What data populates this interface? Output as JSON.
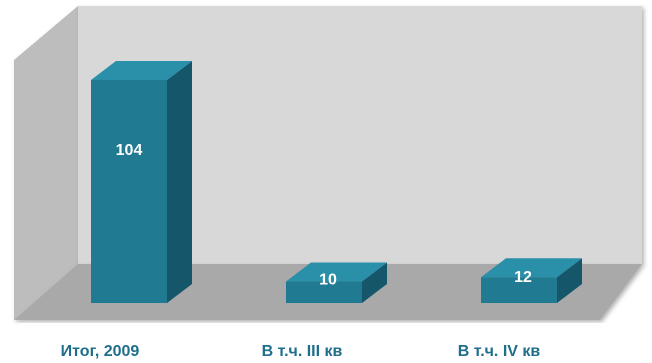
{
  "chart_data": {
    "type": "bar",
    "categories": [
      "Итог, 2009",
      "В т.ч. III кв",
      "В т.ч. IV кв"
    ],
    "values": [
      104,
      10,
      12
    ],
    "data_labels": [
      "104",
      "10",
      "12"
    ],
    "ylim": [
      0,
      120
    ],
    "grid": false,
    "legend": "none",
    "three_d": true,
    "colors": {
      "bar_front": "#1f7a92",
      "bar_side": "#15566a",
      "bar_top": "#2a8fa8",
      "back_wall": "#d8d8d8",
      "side_wall": "#bdbdbd",
      "floor": "#a9a9a9",
      "category_text": "#1f6e8c",
      "label_text": "#ffffff"
    }
  }
}
